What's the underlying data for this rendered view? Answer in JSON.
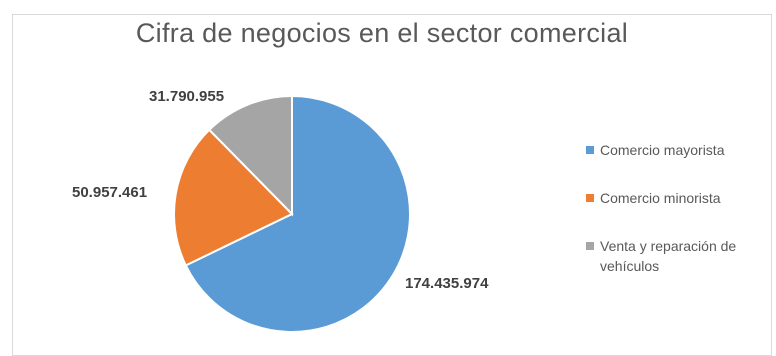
{
  "chart_data": {
    "type": "pie",
    "title": "Cifra de negocios en el sector comercial",
    "categories": [
      "Comercio mayorista",
      "Comercio minorista",
      "Venta y reparación de vehículos"
    ],
    "values": [
      174435974,
      50957461,
      31790955
    ],
    "value_labels": [
      "174.435.974",
      "50.957.461",
      "31.790.955"
    ],
    "colors": [
      "#5b9bd5",
      "#ed7d31",
      "#a5a5a5"
    ],
    "legend_position": "right",
    "start_angle_deg": 0,
    "direction": "clockwise"
  }
}
